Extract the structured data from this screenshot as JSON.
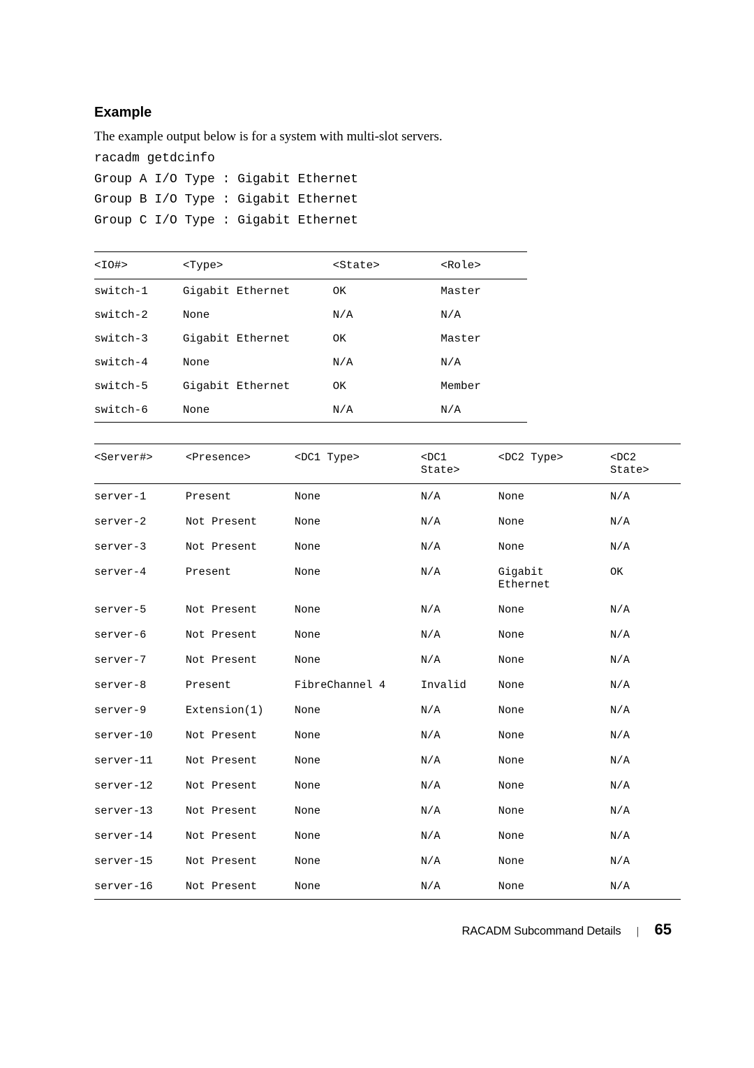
{
  "heading": "Example",
  "intro": "The example output below is for a system with multi-slot servers.",
  "command": "racadm getdcinfo",
  "code_lines": [
    "Group A I/O Type : Gigabit Ethernet",
    "Group B I/O Type : Gigabit Ethernet",
    "Group C I/O Type : Gigabit Ethernet"
  ],
  "table1": {
    "headers": [
      "<IO#>",
      "<Type>",
      "<State>",
      "<Role>"
    ],
    "rows": [
      [
        "switch-1",
        "Gigabit Ethernet",
        "OK",
        "Master"
      ],
      [
        "switch-2",
        "None",
        "N/A",
        "N/A"
      ],
      [
        "switch-3",
        "Gigabit Ethernet",
        "OK",
        "Master"
      ],
      [
        "switch-4",
        "None",
        "N/A",
        "N/A"
      ],
      [
        "switch-5",
        "Gigabit Ethernet",
        "OK",
        "Member"
      ],
      [
        "switch-6",
        "None",
        "N/A",
        "N/A"
      ]
    ]
  },
  "table2": {
    "headers": [
      "<Server#>",
      "<Presence>",
      "<DC1 Type>",
      "<DC1 State>",
      "<DC2 Type>",
      "<DC2 State>"
    ],
    "rows": [
      [
        "server-1",
        "Present",
        "None",
        "N/A",
        "None",
        "N/A"
      ],
      [
        "server-2",
        "Not Present",
        "None",
        "N/A",
        "None",
        "N/A"
      ],
      [
        "server-3",
        "Not Present",
        "None",
        "N/A",
        "None",
        "N/A"
      ],
      [
        "server-4",
        "Present",
        "None",
        "N/A",
        "Gigabit Ethernet",
        "OK"
      ],
      [
        "server-5",
        "Not Present",
        "None",
        "N/A",
        "None",
        "N/A"
      ],
      [
        "server-6",
        "Not Present",
        "None",
        "N/A",
        "None",
        "N/A"
      ],
      [
        "server-7",
        "Not Present",
        "None",
        "N/A",
        "None",
        "N/A"
      ],
      [
        "server-8",
        "Present",
        "FibreChannel 4",
        "Invalid",
        "None",
        "N/A"
      ],
      [
        "server-9",
        "Extension(1)",
        "None",
        "N/A",
        "None",
        "N/A"
      ],
      [
        "server-10",
        "Not Present",
        "None",
        "N/A",
        "None",
        "N/A"
      ],
      [
        "server-11",
        "Not Present",
        "None",
        "N/A",
        "None",
        "N/A"
      ],
      [
        "server-12",
        "Not Present",
        "None",
        "N/A",
        "None",
        "N/A"
      ],
      [
        "server-13",
        "Not Present",
        "None",
        "N/A",
        "None",
        "N/A"
      ],
      [
        "server-14",
        "Not Present",
        "None",
        "N/A",
        "None",
        "N/A"
      ],
      [
        "server-15",
        "Not Present",
        "None",
        "N/A",
        "None",
        "N/A"
      ],
      [
        "server-16",
        "Not Present",
        "None",
        "N/A",
        "None",
        "N/A"
      ]
    ]
  },
  "footer": {
    "title": "RACADM Subcommand Details",
    "page": "65"
  }
}
